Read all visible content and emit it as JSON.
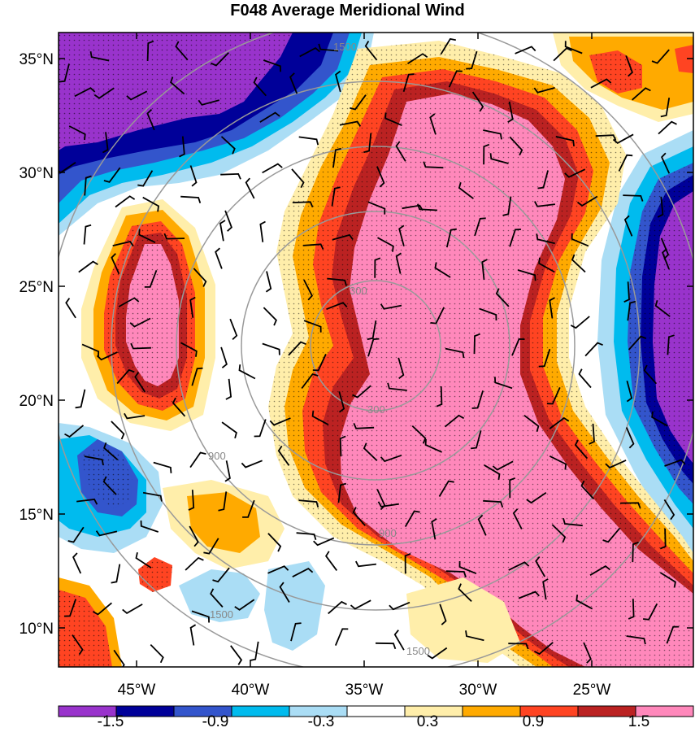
{
  "title": "F048 Average Meridional Wind",
  "map": {
    "lat_labels": [
      "35°N",
      "30°N",
      "25°N",
      "20°N",
      "15°N",
      "10°N"
    ],
    "lon_labels": [
      "45°W",
      "40°W",
      "35°W",
      "30°W",
      "25°W"
    ],
    "range_ring_labels": [
      "300",
      "900",
      "1500"
    ]
  },
  "colorbar": {
    "colors": [
      "#9933cc",
      "#000099",
      "#3355cc",
      "#00bbee",
      "#aaddf5",
      "#ffffff",
      "#ffeeaa",
      "#ffaa00",
      "#ff4422",
      "#bb2222",
      "#ff88bb"
    ],
    "labels": [
      "-1.5",
      "-0.9",
      "-0.3",
      "0.3",
      "0.9",
      "1.5"
    ]
  }
}
